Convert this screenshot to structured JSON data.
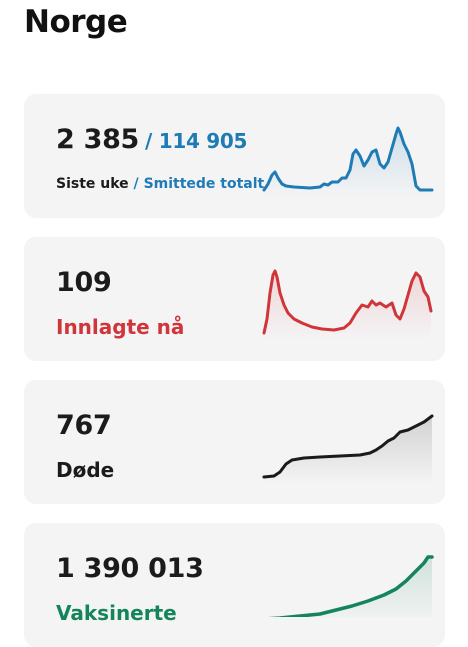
{
  "page_title": "Norge",
  "cards": [
    {
      "main_value": "2 385",
      "total_value": "/ 114 905",
      "sub_label": "Siste uke",
      "sub_label_sep": " / ",
      "sub_label_accent": "Smittede totalt",
      "color": "#1f7bb5"
    },
    {
      "main_value": "109",
      "label": "Innlagte nå",
      "color": "#d0353a"
    },
    {
      "main_value": "767",
      "label": "Døde",
      "color": "#1b1b1b"
    },
    {
      "main_value": "1 390 013",
      "label": "Vaksinerte",
      "color": "#14845b"
    }
  ]
}
